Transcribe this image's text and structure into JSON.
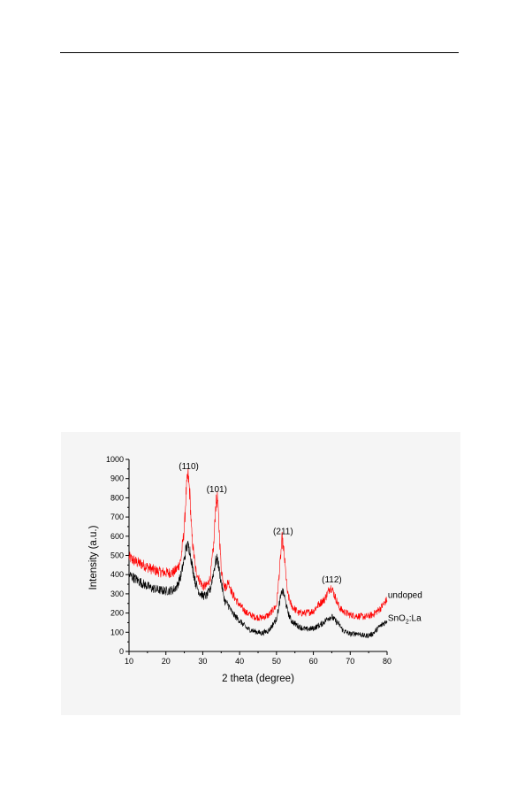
{
  "chart_data": {
    "type": "line",
    "title": "",
    "xlabel": "2 theta (degree)",
    "ylabel": "Intensity (a.u.)",
    "xlim": [
      10,
      80
    ],
    "ylim": [
      0,
      1000
    ],
    "x_ticks": [
      "10",
      "20",
      "30",
      "40",
      "50",
      "60",
      "70",
      "80"
    ],
    "y_ticks": [
      "0",
      "100",
      "200",
      "300",
      "400",
      "500",
      "600",
      "700",
      "800",
      "900",
      "1000"
    ],
    "grid": false,
    "series": [
      {
        "name": "undoped",
        "color": "#ff0000",
        "x": [
          10,
          12,
          14,
          16,
          18,
          20,
          22,
          23,
          24,
          25,
          25.5,
          26,
          26.5,
          27,
          28,
          29,
          30,
          31,
          32,
          33,
          33.5,
          34,
          35,
          36,
          37,
          38,
          40,
          42,
          44,
          46,
          48,
          50,
          51,
          51.5,
          52,
          53,
          54,
          56,
          58,
          60,
          61,
          62,
          63,
          64,
          64.5,
          65,
          66,
          67,
          68,
          70,
          72,
          74,
          76,
          78,
          80
        ],
        "values": [
          490,
          465,
          450,
          430,
          415,
          410,
          410,
          430,
          470,
          640,
          830,
          920,
          820,
          610,
          430,
          375,
          340,
          340,
          380,
          560,
          760,
          800,
          430,
          330,
          365,
          300,
          240,
          200,
          180,
          175,
          190,
          240,
          460,
          590,
          520,
          300,
          240,
          200,
          200,
          210,
          235,
          255,
          270,
          310,
          335,
          330,
          280,
          230,
          210,
          190,
          185,
          180,
          190,
          220,
          270
        ]
      },
      {
        "name": "SnO₂:La",
        "color": "#000000",
        "x": [
          10,
          12,
          14,
          16,
          18,
          20,
          22,
          23,
          24,
          25,
          25.5,
          26,
          26.5,
          27,
          28,
          29,
          30,
          31,
          32,
          33,
          33.5,
          34,
          35,
          36,
          37,
          38,
          40,
          42,
          44,
          46,
          48,
          50,
          51,
          51.5,
          52,
          53,
          54,
          56,
          58,
          60,
          62,
          63,
          64,
          65,
          66,
          67,
          68,
          70,
          72,
          74,
          76,
          78,
          80
        ],
        "values": [
          400,
          375,
          350,
          330,
          320,
          315,
          320,
          340,
          390,
          480,
          540,
          550,
          530,
          460,
          360,
          310,
          290,
          290,
          320,
          420,
          470,
          480,
          360,
          260,
          240,
          200,
          160,
          120,
          105,
          95,
          110,
          170,
          270,
          315,
          300,
          210,
          160,
          130,
          115,
          120,
          140,
          155,
          175,
          180,
          160,
          140,
          110,
          90,
          95,
          80,
          90,
          130,
          160
        ]
      }
    ],
    "annotations": [
      {
        "text": "(110)",
        "x": 26.2,
        "y": 950
      },
      {
        "text": "(101)",
        "x": 33.8,
        "y": 830
      },
      {
        "text": "(211)",
        "x": 51.8,
        "y": 610
      },
      {
        "text": "(112)",
        "x": 65.0,
        "y": 360
      }
    ],
    "legend": {
      "placement": "right-of-curves",
      "undoped_label": "undoped",
      "doped_label_main": "SnO",
      "doped_label_sub": "2",
      "doped_label_tail": ":La"
    }
  }
}
